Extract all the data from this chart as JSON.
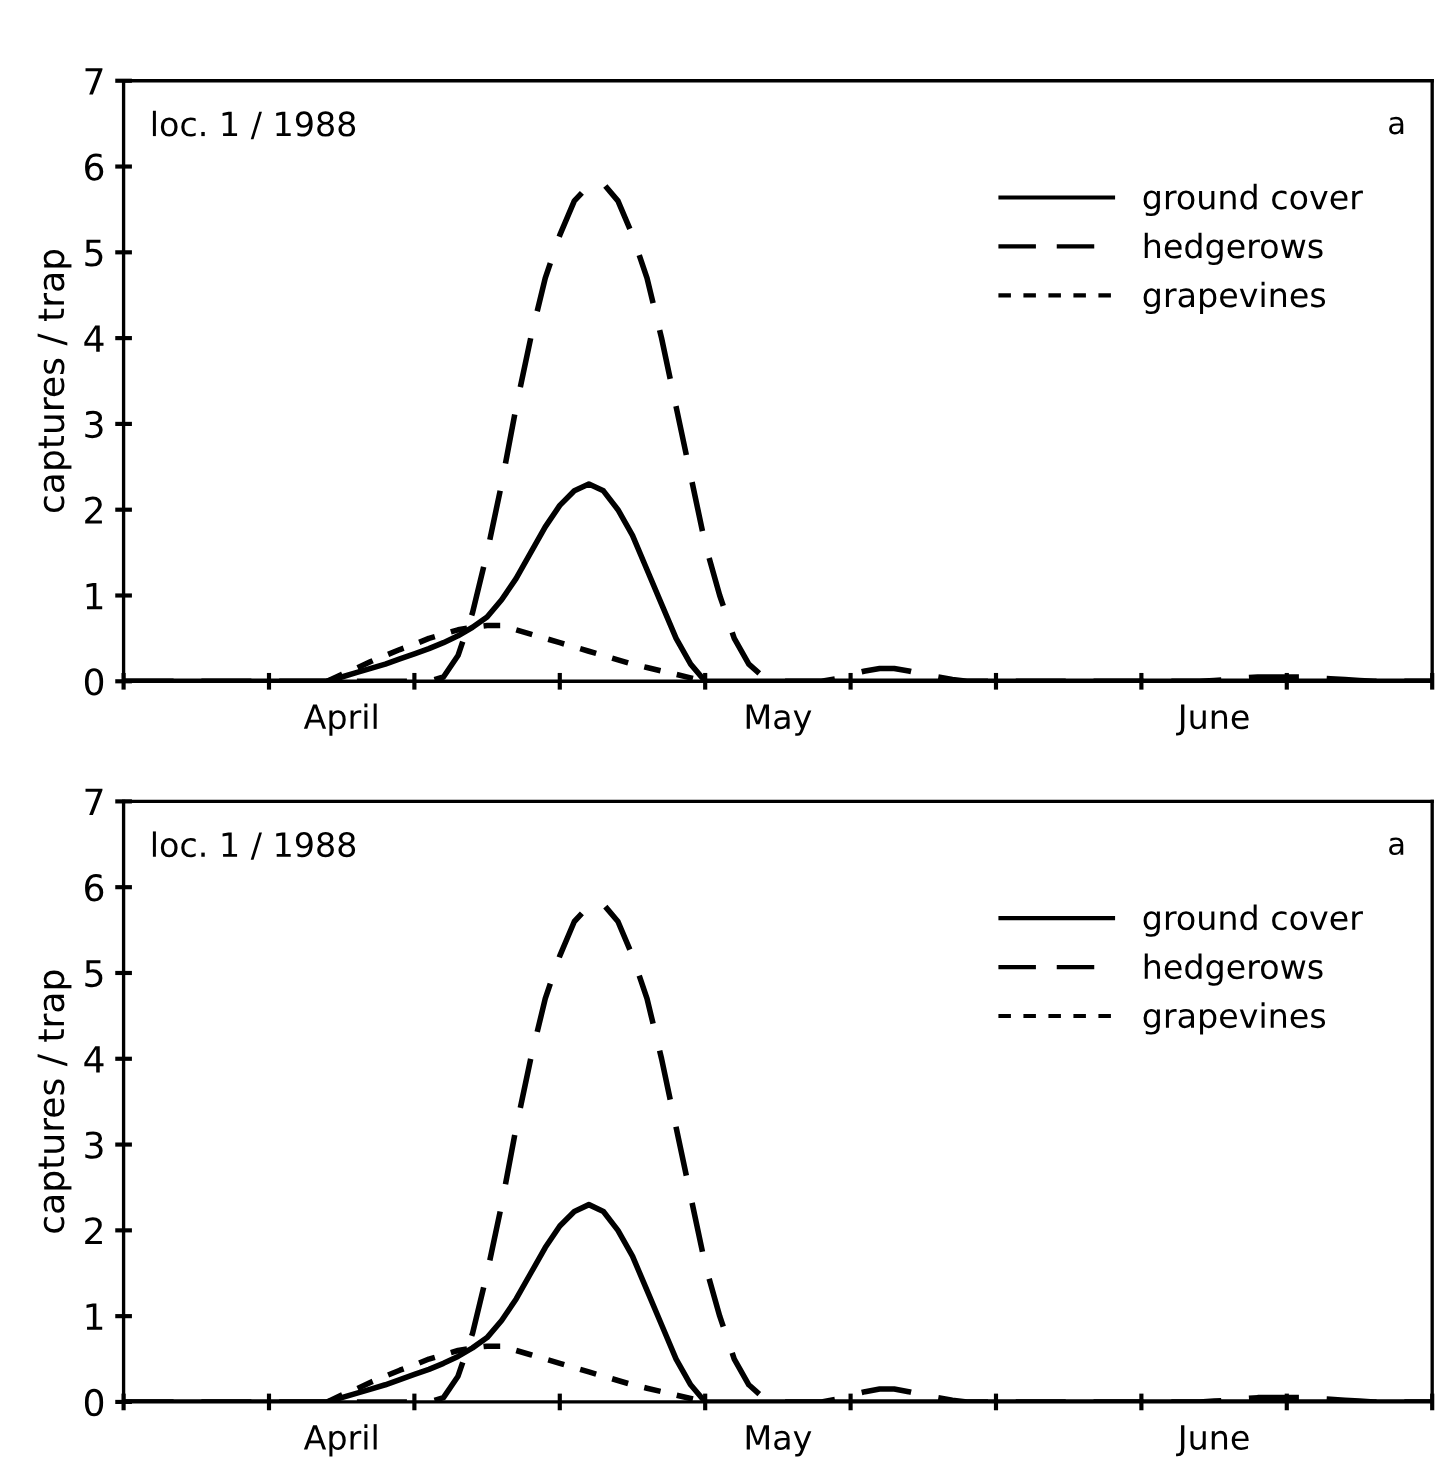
{
  "chart_data": [
    {
      "type": "line",
      "ylabel": "captures / trap",
      "annotations": [
        "loc. 1 / 1988",
        "a"
      ],
      "legend": "right",
      "grid": false,
      "ylim": [
        0,
        7
      ],
      "yticks": [
        0,
        1,
        2,
        3,
        4,
        5,
        6,
        7
      ],
      "categories": [
        null,
        null,
        null,
        null,
        null,
        null,
        null,
        null,
        null,
        null,
        null,
        null,
        null,
        null,
        null,
        "April",
        null,
        null,
        null,
        null,
        null,
        null,
        null,
        null,
        null,
        null,
        null,
        null,
        null,
        null,
        null,
        null,
        null,
        null,
        null,
        null,
        null,
        null,
        null,
        null,
        null,
        null,
        null,
        null,
        null,
        "May",
        null,
        null,
        null,
        null,
        null,
        null,
        null,
        null,
        null,
        null,
        null,
        null,
        null,
        null,
        null,
        null,
        null,
        null,
        null,
        null,
        null,
        null,
        null,
        null,
        null,
        null,
        null,
        null,
        null,
        "June",
        null,
        null,
        null,
        null,
        null,
        null,
        null,
        null,
        null,
        null,
        null,
        null,
        null,
        null,
        null
      ],
      "series": [
        {
          "name": "ground cover",
          "color": "#000000",
          "line_style": "solid",
          "values": [
            0,
            0,
            0,
            0,
            0,
            0,
            0,
            0,
            0,
            0,
            0,
            0,
            0,
            0,
            0,
            0.05,
            0.1,
            0.15,
            0.2,
            0.26,
            0.32,
            0.38,
            0.45,
            0.53,
            0.63,
            0.75,
            0.95,
            1.2,
            1.5,
            1.8,
            2.05,
            2.22,
            2.3,
            2.22,
            2.0,
            1.7,
            1.3,
            0.9,
            0.5,
            0.2,
            0,
            0,
            0,
            0,
            0,
            0,
            0,
            0,
            0,
            0,
            0,
            0,
            0,
            0,
            0,
            0,
            0,
            0,
            0,
            0,
            0,
            0,
            0,
            0,
            0,
            0,
            0,
            0,
            0,
            0,
            0,
            0,
            0,
            0,
            0,
            0,
            0,
            0,
            0,
            0,
            0,
            0,
            0,
            0,
            0,
            0,
            0,
            0,
            0,
            0,
            0
          ]
        },
        {
          "name": "hedgerows",
          "color": "#000000",
          "line_style": "dashed",
          "values": [
            0,
            0,
            0,
            0,
            0,
            0,
            0,
            0,
            0,
            0,
            0,
            0,
            0,
            0,
            0,
            0,
            0,
            0,
            0,
            0,
            0,
            0,
            0.05,
            0.3,
            0.8,
            1.5,
            2.3,
            3.2,
            4.0,
            4.7,
            5.2,
            5.6,
            5.78,
            5.8,
            5.6,
            5.2,
            4.7,
            4.0,
            3.2,
            2.4,
            1.6,
            1.0,
            0.5,
            0.2,
            0.05,
            0,
            0,
            0,
            0,
            0.03,
            0.08,
            0.12,
            0.15,
            0.15,
            0.12,
            0.08,
            0.05,
            0.02,
            0,
            0,
            0,
            0,
            0,
            0,
            0,
            0,
            0,
            0,
            0,
            0,
            0,
            0,
            0,
            0,
            0,
            0.01,
            0.02,
            0.04,
            0.05,
            0.05,
            0.05,
            0.05,
            0.04,
            0.03,
            0.02,
            0.01,
            0,
            0,
            0,
            0,
            0
          ]
        },
        {
          "name": "grapevines",
          "color": "#000000",
          "line_style": "dotted",
          "values": [
            null,
            null,
            null,
            null,
            null,
            null,
            null,
            null,
            null,
            null,
            null,
            null,
            null,
            null,
            0,
            0.08,
            0.15,
            0.23,
            0.3,
            0.37,
            0.43,
            0.5,
            0.55,
            0.6,
            0.63,
            0.65,
            0.65,
            0.6,
            0.55,
            0.5,
            0.45,
            0.4,
            0.35,
            0.3,
            0.25,
            0.2,
            0.16,
            0.12,
            0.08,
            0.04,
            0,
            null,
            null,
            null,
            null,
            null,
            null,
            null,
            null,
            null,
            null,
            null,
            null,
            null,
            null,
            null,
            null,
            null,
            null,
            null,
            null,
            null,
            null,
            null,
            null,
            null,
            null,
            null,
            null,
            null,
            null,
            null,
            null,
            null,
            null,
            null,
            null,
            null,
            null,
            null,
            null,
            null,
            null,
            null,
            null,
            null,
            null,
            null,
            null,
            null,
            null
          ]
        }
      ]
    },
    {
      "type": "line",
      "ylabel": "captures / trap",
      "annotations": [
        "loc. 1 / 1988",
        "a"
      ],
      "legend": "right",
      "grid": false,
      "ylim": [
        0,
        7
      ],
      "yticks": [
        0,
        1,
        2,
        3,
        4,
        5,
        6,
        7
      ],
      "categories": [
        null,
        null,
        null,
        null,
        null,
        null,
        null,
        null,
        null,
        null,
        null,
        null,
        null,
        null,
        null,
        "April",
        null,
        null,
        null,
        null,
        null,
        null,
        null,
        null,
        null,
        null,
        null,
        null,
        null,
        null,
        null,
        null,
        null,
        null,
        null,
        null,
        null,
        null,
        null,
        null,
        null,
        null,
        null,
        null,
        null,
        "May",
        null,
        null,
        null,
        null,
        null,
        null,
        null,
        null,
        null,
        null,
        null,
        null,
        null,
        null,
        null,
        null,
        null,
        null,
        null,
        null,
        null,
        null,
        null,
        null,
        null,
        null,
        null,
        null,
        null,
        "June",
        null,
        null,
        null,
        null,
        null,
        null,
        null,
        null,
        null,
        null,
        null,
        null,
        null,
        null,
        null
      ],
      "series": [
        {
          "name": "ground cover",
          "color": "#000000",
          "line_style": "solid",
          "values": [
            0,
            0,
            0,
            0,
            0,
            0,
            0,
            0,
            0,
            0,
            0,
            0,
            0,
            0,
            0,
            0.05,
            0.1,
            0.15,
            0.2,
            0.26,
            0.32,
            0.38,
            0.45,
            0.53,
            0.63,
            0.75,
            0.95,
            1.2,
            1.5,
            1.8,
            2.05,
            2.22,
            2.3,
            2.22,
            2.0,
            1.7,
            1.3,
            0.9,
            0.5,
            0.2,
            0,
            0,
            0,
            0,
            0,
            0,
            0,
            0,
            0,
            0,
            0,
            0,
            0,
            0,
            0,
            0,
            0,
            0,
            0,
            0,
            0,
            0,
            0,
            0,
            0,
            0,
            0,
            0,
            0,
            0,
            0,
            0,
            0,
            0,
            0,
            0,
            0,
            0,
            0,
            0,
            0,
            0,
            0,
            0,
            0,
            0,
            0,
            0,
            0,
            0,
            0
          ]
        },
        {
          "name": "hedgerows",
          "color": "#000000",
          "line_style": "dashed",
          "values": [
            0,
            0,
            0,
            0,
            0,
            0,
            0,
            0,
            0,
            0,
            0,
            0,
            0,
            0,
            0,
            0,
            0,
            0,
            0,
            0,
            0,
            0,
            0.05,
            0.3,
            0.8,
            1.5,
            2.3,
            3.2,
            4.0,
            4.7,
            5.2,
            5.6,
            5.78,
            5.8,
            5.6,
            5.2,
            4.7,
            4.0,
            3.2,
            2.4,
            1.6,
            1.0,
            0.5,
            0.2,
            0.05,
            0,
            0,
            0,
            0,
            0.03,
            0.08,
            0.12,
            0.15,
            0.15,
            0.12,
            0.08,
            0.05,
            0.02,
            0,
            0,
            0,
            0,
            0,
            0,
            0,
            0,
            0,
            0,
            0,
            0,
            0,
            0,
            0,
            0,
            0,
            0.01,
            0.02,
            0.04,
            0.05,
            0.05,
            0.05,
            0.05,
            0.04,
            0.03,
            0.02,
            0.01,
            0,
            0,
            0,
            0,
            0
          ]
        },
        {
          "name": "grapevines",
          "color": "#000000",
          "line_style": "dotted",
          "values": [
            null,
            null,
            null,
            null,
            null,
            null,
            null,
            null,
            null,
            null,
            null,
            null,
            null,
            null,
            0,
            0.08,
            0.15,
            0.23,
            0.3,
            0.37,
            0.43,
            0.5,
            0.55,
            0.6,
            0.63,
            0.65,
            0.65,
            0.6,
            0.55,
            0.5,
            0.45,
            0.4,
            0.35,
            0.3,
            0.25,
            0.2,
            0.16,
            0.12,
            0.08,
            0.04,
            0,
            null,
            null,
            null,
            null,
            null,
            null,
            null,
            null,
            null,
            null,
            null,
            null,
            null,
            null,
            null,
            null,
            null,
            null,
            null,
            null,
            null,
            null,
            null,
            null,
            null,
            null,
            null,
            null,
            null,
            null,
            null,
            null,
            null,
            null,
            null,
            null,
            null,
            null,
            null,
            null,
            null,
            null,
            null,
            null,
            null,
            null,
            null,
            null,
            null,
            null
          ]
        }
      ]
    }
  ]
}
